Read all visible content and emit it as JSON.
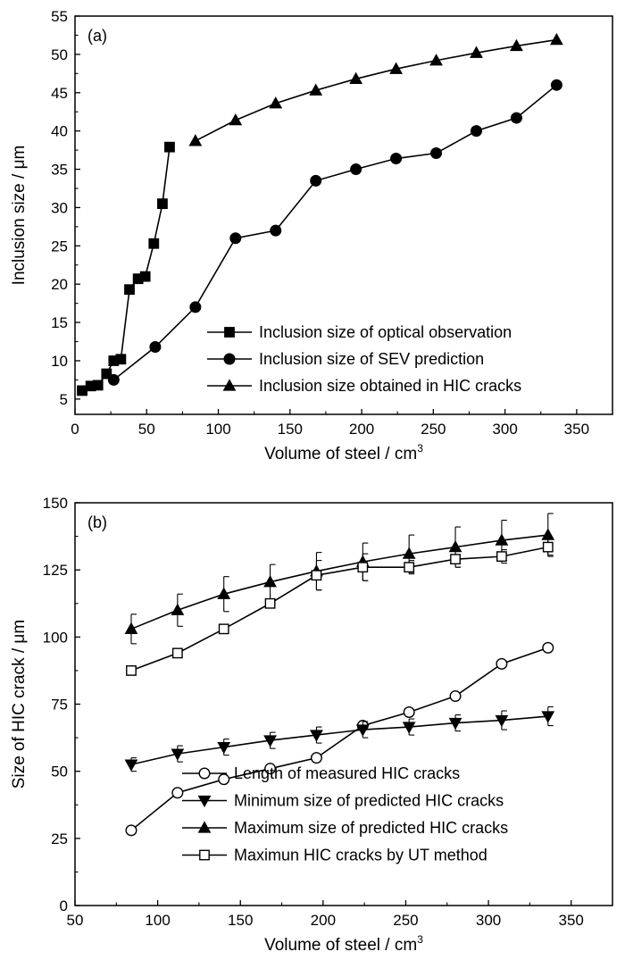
{
  "chart_data": [
    {
      "type": "line",
      "panel_label": "(a)",
      "title": "",
      "xlabel": "Volume of steel / cm",
      "xlabel_sup": "3",
      "ylabel": "Inclusion size / μm",
      "xlim": [
        0,
        375
      ],
      "ylim": [
        3,
        55
      ],
      "xticks": [
        0,
        50,
        100,
        150,
        200,
        250,
        300,
        350
      ],
      "yticks": [
        5,
        10,
        15,
        20,
        25,
        30,
        35,
        40,
        45,
        50,
        55
      ],
      "legend_position": "bottom-right",
      "series": [
        {
          "name": "Inclusion size of optical observation",
          "marker": "filled-square",
          "x": [
            5,
            11,
            16,
            22,
            27,
            32,
            38,
            44,
            49,
            55,
            61,
            66
          ],
          "y": [
            6.1,
            6.7,
            6.8,
            8.3,
            10.0,
            10.2,
            19.3,
            20.7,
            21.0,
            25.3,
            30.5,
            37.9
          ]
        },
        {
          "name": "Inclusion size of SEV prediction",
          "marker": "filled-circle",
          "x": [
            27,
            56,
            84,
            112,
            140,
            168,
            196,
            224,
            252,
            280,
            308,
            336
          ],
          "y": [
            7.5,
            11.8,
            17.0,
            26.0,
            27.0,
            33.5,
            35.0,
            36.4,
            37.1,
            40.0,
            41.7,
            46.0
          ]
        },
        {
          "name": "Inclusion size obtained in HIC cracks",
          "marker": "filled-triangle-up",
          "x": [
            84,
            112,
            140,
            168,
            196,
            224,
            252,
            280,
            308,
            336
          ],
          "y": [
            38.7,
            41.4,
            43.6,
            45.3,
            46.8,
            48.1,
            49.2,
            50.2,
            51.1,
            51.9
          ]
        }
      ]
    },
    {
      "type": "line",
      "panel_label": "(b)",
      "title": "",
      "xlabel": "Volume of steel / cm",
      "xlabel_sup": "3",
      "ylabel": "Size of HIC crack / μm",
      "xlim": [
        50,
        375
      ],
      "ylim": [
        0,
        150
      ],
      "xticks": [
        50,
        100,
        150,
        200,
        250,
        300,
        350
      ],
      "yticks": [
        0,
        25,
        50,
        75,
        100,
        125,
        150
      ],
      "legend_position": "bottom-right",
      "series": [
        {
          "name": "Length of measured HIC cracks",
          "marker": "open-circle",
          "x": [
            84,
            112,
            140,
            168,
            196,
            224,
            252,
            280,
            308,
            336
          ],
          "y": [
            28,
            42,
            47,
            51,
            55,
            67,
            72,
            78,
            90,
            96
          ]
        },
        {
          "name": "Minimum size of predicted HIC cracks",
          "marker": "filled-triangle-down",
          "x": [
            84,
            112,
            140,
            168,
            196,
            224,
            252,
            280,
            308,
            336
          ],
          "y": [
            52.5,
            56.5,
            59,
            61.5,
            63.5,
            65.5,
            66.5,
            68,
            69,
            70.5
          ],
          "error": [
            2.5,
            3,
            3,
            3,
            3,
            3,
            3,
            3,
            3.5,
            3.5
          ]
        },
        {
          "name": "Maximum size of predicted HIC cracks",
          "marker": "filled-triangle-up",
          "x": [
            84,
            112,
            140,
            168,
            196,
            224,
            252,
            280,
            308,
            336
          ],
          "y": [
            103,
            110,
            116,
            120.5,
            124.5,
            128,
            131,
            133.5,
            136,
            138
          ],
          "error": [
            5.5,
            6,
            6.5,
            6.5,
            7,
            7,
            7,
            7.5,
            7.5,
            8
          ]
        },
        {
          "name": "Maximun HIC cracks by UT method",
          "marker": "open-square",
          "x": [
            84,
            112,
            140,
            168,
            196,
            224,
            252,
            280,
            308,
            336
          ],
          "y": [
            87.5,
            94,
            103,
            112.5,
            123,
            126,
            126,
            129,
            130,
            133.5
          ],
          "error": [
            0,
            0,
            0,
            0,
            5.5,
            5,
            2.5,
            3,
            2.5,
            3
          ]
        }
      ]
    }
  ]
}
